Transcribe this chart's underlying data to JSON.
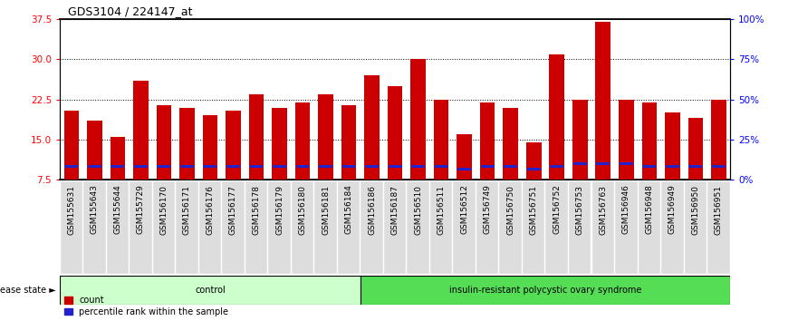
{
  "title": "GDS3104 / 224147_at",
  "samples": [
    "GSM155631",
    "GSM155643",
    "GSM155644",
    "GSM155729",
    "GSM156170",
    "GSM156171",
    "GSM156176",
    "GSM156177",
    "GSM156178",
    "GSM156179",
    "GSM156180",
    "GSM156181",
    "GSM156184",
    "GSM156186",
    "GSM156187",
    "GSM156510",
    "GSM156511",
    "GSM156512",
    "GSM156749",
    "GSM156750",
    "GSM156751",
    "GSM156752",
    "GSM156753",
    "GSM156763",
    "GSM156946",
    "GSM156948",
    "GSM156949",
    "GSM156950",
    "GSM156951"
  ],
  "red_values": [
    20.5,
    18.5,
    15.5,
    26.0,
    21.5,
    21.0,
    19.5,
    20.5,
    23.5,
    21.0,
    22.0,
    23.5,
    21.5,
    27.0,
    25.0,
    30.0,
    22.5,
    16.0,
    22.0,
    21.0,
    14.5,
    31.0,
    22.5,
    37.0,
    22.5,
    22.0,
    20.0,
    19.0,
    22.5
  ],
  "blue_positions": [
    10.0,
    10.0,
    10.0,
    10.0,
    10.0,
    10.0,
    10.0,
    10.0,
    10.0,
    10.0,
    10.0,
    10.0,
    10.0,
    10.0,
    10.0,
    10.0,
    10.0,
    9.5,
    10.0,
    10.0,
    9.5,
    10.0,
    10.5,
    10.5,
    10.5,
    10.0,
    10.0,
    10.0,
    10.0
  ],
  "control_count": 13,
  "disease_count": 16,
  "group_labels": [
    "control",
    "insulin-resistant polycystic ovary syndrome"
  ],
  "left_yticks": [
    7.5,
    15.0,
    22.5,
    30.0,
    37.5
  ],
  "right_yticks": [
    0,
    25,
    50,
    75,
    100
  ],
  "right_yticklabels": [
    "0%",
    "25%",
    "50%",
    "75%",
    "100%"
  ],
  "ylim_left": [
    7.5,
    37.5
  ],
  "ylim_right": [
    0,
    100
  ],
  "bar_width": 0.65,
  "red_color": "#CC0000",
  "blue_color": "#2222CC",
  "control_bg": "#CCFFCC",
  "disease_bg": "#55DD55",
  "sample_bg": "#DDDDDD",
  "title_fontsize": 9,
  "tick_fontsize": 6.5,
  "label_fontsize": 7,
  "legend_fontsize": 7
}
